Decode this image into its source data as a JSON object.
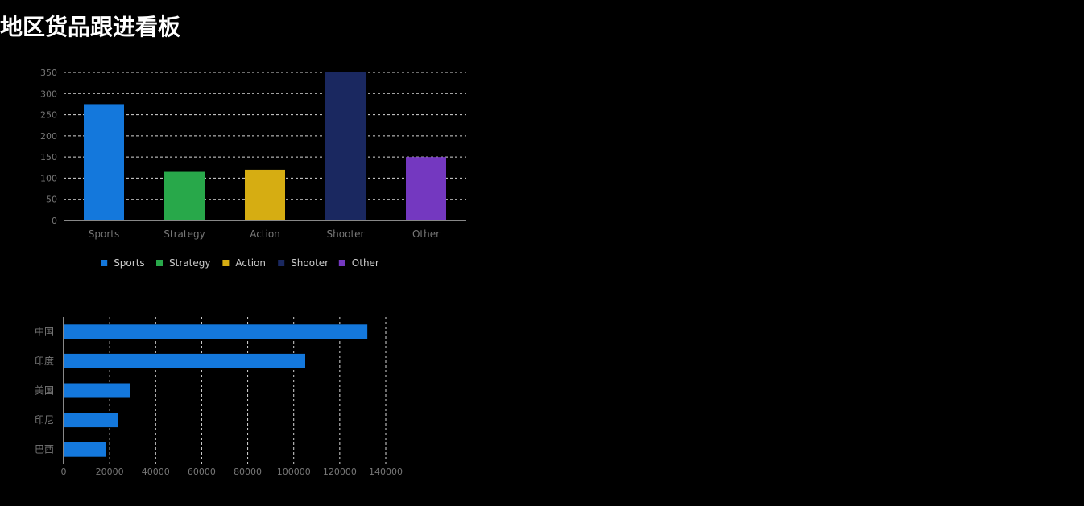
{
  "page": {
    "title": "地区货品跟进看板"
  },
  "chart_data": [
    {
      "type": "bar",
      "orientation": "vertical",
      "categories": [
        "Sports",
        "Strategy",
        "Action",
        "Shooter",
        "Other"
      ],
      "values": [
        275,
        115,
        120,
        350,
        150
      ],
      "colors": [
        "#1478dc",
        "#28a84a",
        "#d6ad12",
        "#1a2860",
        "#7438c0"
      ],
      "ylim": [
        0,
        350
      ],
      "yticks": [
        0,
        50,
        100,
        150,
        200,
        250,
        300,
        350
      ],
      "grid": true,
      "legend": {
        "placement": "bottom",
        "entries": [
          "Sports",
          "Strategy",
          "Action",
          "Shooter",
          "Other"
        ]
      }
    },
    {
      "type": "bar",
      "orientation": "horizontal",
      "categories": [
        "中国",
        "印度",
        "美国",
        "印尼",
        "巴西"
      ],
      "values": [
        132000,
        105000,
        29000,
        23500,
        18500
      ],
      "color": "#1478dc",
      "xlim": [
        0,
        140000
      ],
      "xticks": [
        0,
        20000,
        40000,
        60000,
        80000,
        100000,
        120000,
        140000
      ],
      "grid": true
    }
  ]
}
